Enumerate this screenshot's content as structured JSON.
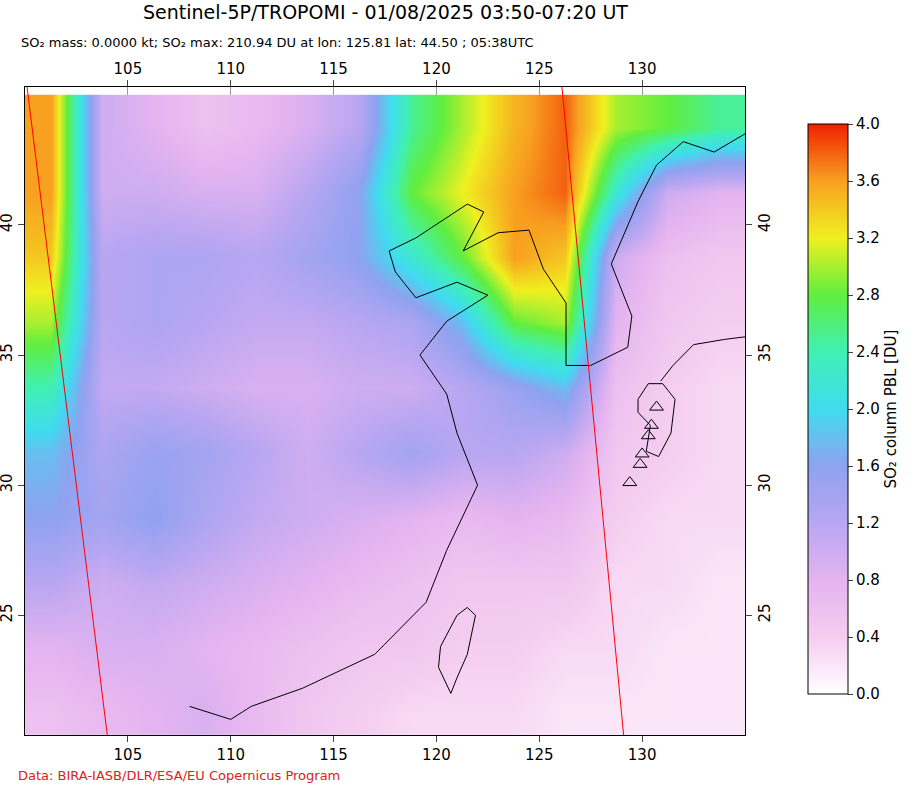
{
  "chart_data": {
    "type": "heatmap",
    "title": "Sentinel-5P/TROPOMI - 01/08/2025 03:50-07:20 UT",
    "subtitle": "SO₂ mass: 0.0000 kt; SO₂ max: 210.94 DU at lon: 125.81 lat: 44.50 ; 05:38UTC",
    "source": "Data: BIRA-IASB/DLR/ESA/EU Copernicus Program",
    "xlim": [
      100,
      135
    ],
    "ylim": [
      20.4,
      45.3
    ],
    "xticks": [
      105,
      110,
      115,
      120,
      125,
      130
    ],
    "yticks": [
      25,
      30,
      35,
      40
    ],
    "grid": true,
    "x": [
      101.25,
      103.75,
      106.25,
      108.75,
      111.25,
      113.75,
      116.25,
      118.75,
      121.25,
      123.75,
      126.25,
      128.75,
      131.25,
      133.75
    ],
    "y": [
      21.25,
      23.75,
      26.25,
      28.75,
      31.25,
      33.75,
      36.25,
      38.75,
      41.25,
      43.75
    ],
    "z": [
      [
        0.6,
        0.7,
        0.8,
        0.9,
        0.7,
        0.5,
        0.4,
        0.3,
        0.3,
        0.3,
        0.2,
        0.2,
        0.2,
        0.2
      ],
      [
        0.8,
        0.9,
        0.9,
        0.8,
        0.7,
        0.6,
        0.5,
        0.5,
        0.4,
        0.4,
        0.3,
        0.3,
        0.2,
        0.2
      ],
      [
        1.2,
        1.0,
        1.1,
        1.0,
        0.9,
        0.8,
        0.7,
        0.6,
        0.5,
        0.5,
        0.5,
        0.3,
        0.3,
        0.2
      ],
      [
        1.6,
        1.4,
        1.6,
        1.3,
        1.1,
        1.0,
        0.9,
        0.8,
        0.7,
        0.8,
        0.7,
        0.4,
        0.3,
        0.3
      ],
      [
        1.8,
        1.3,
        1.5,
        1.4,
        1.2,
        1.0,
        1.2,
        1.4,
        1.2,
        1.2,
        1.0,
        0.5,
        0.4,
        0.3
      ],
      [
        2.4,
        1.1,
        1.1,
        1.0,
        0.9,
        0.9,
        1.0,
        1.0,
        1.2,
        1.5,
        1.8,
        0.6,
        0.4,
        0.3
      ],
      [
        3.0,
        1.2,
        1.3,
        1.2,
        1.1,
        1.1,
        1.2,
        1.3,
        1.8,
        2.8,
        3.0,
        0.8,
        0.5,
        0.4
      ],
      [
        3.4,
        1.2,
        1.3,
        1.3,
        1.2,
        1.4,
        1.6,
        2.2,
        2.8,
        3.6,
        3.4,
        1.0,
        0.6,
        0.5
      ],
      [
        3.6,
        1.0,
        1.0,
        0.9,
        0.9,
        1.2,
        1.6,
        2.8,
        3.2,
        3.6,
        3.8,
        2.2,
        1.0,
        0.8
      ],
      [
        3.6,
        1.0,
        0.8,
        0.6,
        0.7,
        0.9,
        1.2,
        2.5,
        3.0,
        3.5,
        3.8,
        3.0,
        2.8,
        2.5
      ]
    ],
    "colorbar": {
      "title": "SO₂ column PBL [DU]",
      "range": [
        0,
        4
      ],
      "ticks": [
        {
          "value": 0,
          "label": "0.0"
        },
        0.4,
        0.8,
        1.2,
        1.6,
        {
          "value": 2,
          "label": "2.0"
        },
        2.4,
        2.8,
        3.2,
        3.6,
        {
          "value": 4,
          "label": "4.0"
        }
      ]
    },
    "coastlines": [
      {
        "lon": [
          108,
          110,
          111,
          113.5,
          117,
          119.5,
          120.5,
          122,
          121,
          120.5,
          119.2,
          120.5,
          122.5,
          121,
          119,
          118,
          117.7,
          119,
          121.5,
          122.3,
          121.3,
          123,
          124.5,
          125.2,
          126.3,
          126.3,
          127.5,
          129.3,
          129.5,
          128.5,
          129.8,
          130.7,
          132,
          133.5,
          135
        ],
        "lat": [
          21.5,
          21,
          21.5,
          22.2,
          23.5,
          25.5,
          27.5,
          30,
          32,
          33.5,
          35,
          36.3,
          37.3,
          37.8,
          37.2,
          38.2,
          39,
          39.5,
          40.8,
          40.5,
          39,
          39.7,
          39.8,
          38.3,
          37,
          34.6,
          34.6,
          35.3,
          36.5,
          38.5,
          40.9,
          42.3,
          43.2,
          42.8,
          43.5
        ]
      },
      {
        "lon": [
          120.1,
          120.7,
          121,
          121.5,
          121.9,
          121.5,
          121,
          120.2,
          120.1
        ],
        "lat": [
          23,
          22,
          22.6,
          23.5,
          25,
          25.3,
          25,
          23.8,
          23
        ]
      },
      {
        "lon": [
          129.8,
          130.3,
          131,
          131.6,
          131.4,
          130.8,
          130.2,
          130.4,
          129.8,
          129.8
        ],
        "lat": [
          33.3,
          33.9,
          33.9,
          33.3,
          32,
          31.1,
          31.3,
          32.3,
          32.8,
          33.3
        ]
      },
      {
        "lon": [
          130.9,
          131.5,
          132.5,
          134,
          135
        ],
        "lat": [
          34,
          34.6,
          35.4,
          35.6,
          35.7
        ]
      }
    ],
    "swath_edges": {
      "color": "#ff0000",
      "lines": [
        {
          "lon": [
            100.1,
            104.0
          ],
          "lat": [
            45.3,
            20.4
          ]
        },
        {
          "lon": [
            126.1,
            129.1
          ],
          "lat": [
            45.3,
            20.4
          ]
        }
      ]
    },
    "volcanoes": {
      "marker": "triangle-up-open",
      "lon": [
        130.7,
        130.45,
        130.3,
        130.0,
        129.9,
        129.4
      ],
      "lat": [
        33.0,
        32.3,
        31.9,
        31.2,
        30.8,
        30.1
      ]
    }
  }
}
